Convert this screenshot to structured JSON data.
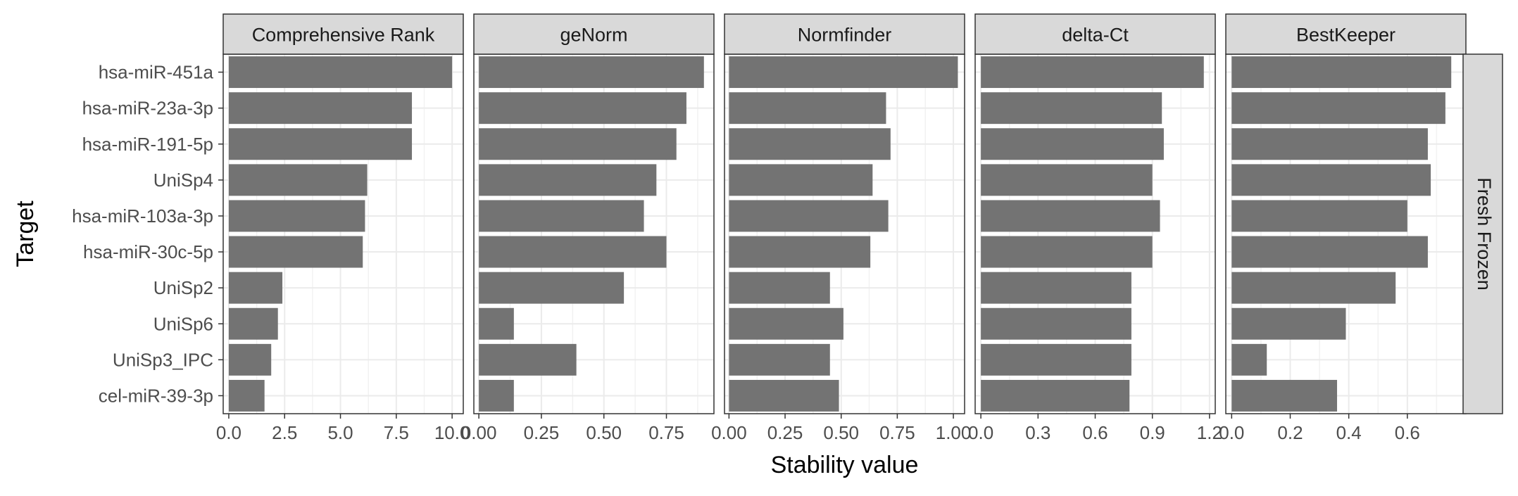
{
  "chart_data": {
    "type": "bar",
    "orientation": "horizontal",
    "xlabel": "Stability value",
    "ylabel": "Target",
    "row_strip": "Fresh Frozen",
    "categories": [
      "hsa-miR-451a",
      "hsa-miR-23a-3p",
      "hsa-miR-191-5p",
      "UniSp4",
      "hsa-miR-103a-3p",
      "hsa-miR-30c-5p",
      "UniSp2",
      "UniSp6",
      "UniSp3_IPC",
      "cel-miR-39-3p"
    ],
    "grid": true,
    "bar_color": "#737373",
    "panels": [
      {
        "title": "Comprehensive Rank",
        "xlim": [
          -0.25,
          10.5
        ],
        "ticks": [
          0,
          2.5,
          5,
          7.5,
          10
        ],
        "tick_labels": [
          "0.0",
          "2.5",
          "5.0",
          "7.5",
          "10.0"
        ],
        "values": [
          10.0,
          8.2,
          8.2,
          6.2,
          6.1,
          6.0,
          2.4,
          2.2,
          1.9,
          1.6
        ]
      },
      {
        "title": "geNorm",
        "xlim": [
          -0.02,
          0.94
        ],
        "ticks": [
          0,
          0.25,
          0.5,
          0.75
        ],
        "tick_labels": [
          "0.00",
          "0.25",
          "0.50",
          "0.75"
        ],
        "values": [
          0.9,
          0.83,
          0.79,
          0.71,
          0.66,
          0.75,
          0.58,
          0.14,
          0.39,
          0.14
        ]
      },
      {
        "title": "Normfinder",
        "xlim": [
          -0.02,
          1.05
        ],
        "ticks": [
          0,
          0.25,
          0.5,
          0.75,
          1.0
        ],
        "tick_labels": [
          "0.00",
          "0.25",
          "0.50",
          "0.75",
          "1.00"
        ],
        "values": [
          1.02,
          0.7,
          0.72,
          0.64,
          0.71,
          0.63,
          0.45,
          0.51,
          0.45,
          0.49
        ]
      },
      {
        "title": "delta-Ct",
        "xlim": [
          -0.03,
          1.23
        ],
        "ticks": [
          0,
          0.3,
          0.6,
          0.9,
          1.2
        ],
        "tick_labels": [
          "0.0",
          "0.3",
          "0.6",
          "0.9",
          "1.2"
        ],
        "values": [
          1.17,
          0.95,
          0.96,
          0.9,
          0.94,
          0.9,
          0.79,
          0.79,
          0.79,
          0.78
        ]
      },
      {
        "title": "BestKeeper",
        "xlim": [
          -0.02,
          0.8
        ],
        "ticks": [
          0,
          0.2,
          0.4,
          0.6
        ],
        "tick_labels": [
          "0.0",
          "0.2",
          "0.4",
          "0.6"
        ],
        "values": [
          0.75,
          0.73,
          0.67,
          0.68,
          0.6,
          0.67,
          0.56,
          0.39,
          0.12,
          0.36
        ]
      }
    ]
  }
}
